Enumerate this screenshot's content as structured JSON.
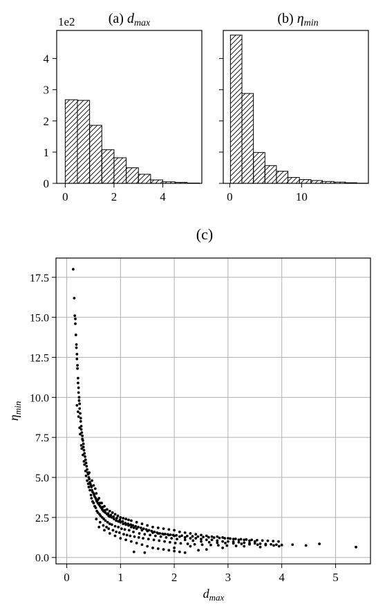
{
  "chart_data": [
    {
      "id": "a",
      "type": "bar",
      "title_prefix": "(a) ",
      "title_var": "d",
      "title_sub": "max",
      "offset_text": "1e2",
      "bin_width": 0.5,
      "bin_lefts": [
        0.0,
        0.5,
        1.0,
        1.5,
        2.0,
        2.5,
        3.0,
        3.5,
        4.0,
        4.5,
        5.0
      ],
      "values": [
        2.68,
        2.66,
        1.86,
        1.08,
        0.82,
        0.5,
        0.29,
        0.11,
        0.05,
        0.03,
        0.01
      ],
      "xlim": [
        -0.35,
        5.6
      ],
      "ylim": [
        0,
        4.9
      ],
      "xticks": [
        0,
        2,
        4
      ],
      "xtick_labels": [
        "0",
        "2",
        "4"
      ],
      "yticks": [
        0,
        1,
        2,
        3,
        4
      ],
      "ytick_labels": [
        "0",
        "1",
        "2",
        "3",
        "4"
      ],
      "hatch": "diagonal"
    },
    {
      "id": "b",
      "type": "bar",
      "title_prefix": "(b) ",
      "title_var": "η",
      "title_sub": "min",
      "bin_width": 1.6,
      "bin_lefts": [
        0.1,
        1.7,
        3.3,
        4.9,
        6.5,
        8.1,
        9.7,
        11.3,
        12.9,
        14.5,
        16.1,
        17.7
      ],
      "values": [
        4.75,
        2.88,
        0.99,
        0.57,
        0.39,
        0.19,
        0.12,
        0.09,
        0.06,
        0.04,
        0.02,
        0.005
      ],
      "xlim": [
        -0.9,
        19.3
      ],
      "ylim": [
        0,
        4.9
      ],
      "xticks": [
        0,
        10
      ],
      "xtick_labels": [
        "0",
        "10"
      ],
      "yticks": [
        0,
        1,
        2,
        3,
        4
      ],
      "hatch": "diagonal"
    },
    {
      "id": "c",
      "type": "scatter",
      "title": "(c)",
      "xlabel_var": "d",
      "xlabel_sub": "max",
      "ylabel_var": "η",
      "ylabel_sub": "min",
      "xlim": [
        -0.2,
        5.65
      ],
      "ylim": [
        -0.4,
        18.7
      ],
      "xticks": [
        0,
        1,
        2,
        3,
        4,
        5
      ],
      "xtick_labels": [
        "0",
        "1",
        "2",
        "3",
        "4",
        "5"
      ],
      "yticks": [
        0,
        2.5,
        5,
        7.5,
        10,
        12.5,
        15,
        17.5
      ],
      "ytick_labels": [
        "0.0",
        "2.5",
        "5.0",
        "7.5",
        "10.0",
        "12.5",
        "15.0",
        "17.5"
      ],
      "grid": true,
      "points": [
        [
          0.12,
          18.0
        ],
        [
          0.14,
          16.2
        ],
        [
          0.15,
          15.1
        ],
        [
          0.16,
          14.9
        ],
        [
          0.16,
          14.6
        ],
        [
          0.17,
          13.9
        ],
        [
          0.18,
          13.3
        ],
        [
          0.18,
          13.1
        ],
        [
          0.19,
          12.7
        ],
        [
          0.19,
          12.4
        ],
        [
          0.2,
          12.0
        ],
        [
          0.2,
          11.8
        ],
        [
          0.21,
          11.2
        ],
        [
          0.21,
          10.9
        ],
        [
          0.22,
          10.6
        ],
        [
          0.22,
          10.3
        ],
        [
          0.23,
          10.0
        ],
        [
          0.23,
          9.8
        ],
        [
          0.24,
          9.6
        ],
        [
          0.24,
          9.3
        ],
        [
          0.25,
          9.0
        ],
        [
          0.26,
          8.7
        ],
        [
          0.26,
          8.5
        ],
        [
          0.27,
          8.2
        ],
        [
          0.27,
          8.0
        ],
        [
          0.28,
          7.8
        ],
        [
          0.29,
          7.6
        ],
        [
          0.29,
          7.4
        ],
        [
          0.3,
          7.3
        ],
        [
          0.31,
          7.1
        ],
        [
          0.31,
          6.9
        ],
        [
          0.32,
          6.7
        ],
        [
          0.33,
          6.5
        ],
        [
          0.34,
          6.3
        ],
        [
          0.35,
          6.1
        ],
        [
          0.36,
          5.9
        ],
        [
          0.37,
          5.7
        ],
        [
          0.38,
          5.5
        ],
        [
          0.39,
          5.3
        ],
        [
          0.4,
          5.2
        ],
        [
          0.41,
          5.0
        ],
        [
          0.42,
          4.9
        ],
        [
          0.43,
          4.7
        ],
        [
          0.44,
          4.6
        ],
        [
          0.45,
          4.5
        ],
        [
          0.46,
          4.4
        ],
        [
          0.47,
          4.2
        ],
        [
          0.48,
          4.1
        ],
        [
          0.5,
          4.0
        ],
        [
          0.51,
          3.9
        ],
        [
          0.52,
          3.8
        ],
        [
          0.54,
          3.7
        ],
        [
          0.55,
          3.6
        ],
        [
          0.56,
          3.5
        ],
        [
          0.58,
          3.4
        ],
        [
          0.6,
          3.3
        ],
        [
          0.62,
          3.2
        ],
        [
          0.64,
          3.1
        ],
        [
          0.66,
          3.0
        ],
        [
          0.68,
          2.9
        ],
        [
          0.7,
          2.85
        ],
        [
          0.72,
          2.8
        ],
        [
          0.75,
          2.7
        ],
        [
          0.78,
          2.6
        ],
        [
          0.8,
          2.55
        ],
        [
          0.84,
          2.5
        ],
        [
          0.88,
          2.4
        ],
        [
          0.92,
          2.3
        ],
        [
          0.96,
          2.25
        ],
        [
          1.0,
          2.2
        ],
        [
          1.05,
          2.1
        ],
        [
          1.1,
          2.05
        ],
        [
          1.15,
          2.0
        ],
        [
          1.2,
          1.9
        ],
        [
          1.25,
          1.85
        ],
        [
          1.3,
          1.8
        ],
        [
          1.4,
          1.7
        ],
        [
          1.5,
          1.65
        ],
        [
          1.6,
          1.55
        ],
        [
          1.7,
          1.5
        ],
        [
          1.8,
          1.45
        ],
        [
          1.9,
          1.4
        ],
        [
          2.0,
          1.35
        ],
        [
          2.1,
          1.3
        ],
        [
          2.2,
          1.25
        ],
        [
          2.3,
          1.2
        ],
        [
          2.4,
          1.2
        ],
        [
          2.5,
          1.15
        ],
        [
          2.6,
          1.1
        ],
        [
          2.7,
          1.1
        ],
        [
          2.8,
          1.05
        ],
        [
          2.9,
          1.0
        ],
        [
          3.0,
          1.0
        ],
        [
          3.1,
          0.98
        ],
        [
          3.2,
          0.95
        ],
        [
          3.3,
          0.92
        ],
        [
          3.4,
          0.9
        ],
        [
          3.5,
          0.88
        ],
        [
          3.6,
          0.86
        ],
        [
          3.7,
          0.84
        ],
        [
          3.8,
          0.82
        ],
        [
          3.9,
          0.8
        ],
        [
          4.0,
          0.78
        ],
        [
          4.2,
          0.8
        ],
        [
          4.45,
          0.75
        ],
        [
          4.7,
          0.85
        ],
        [
          5.38,
          0.65
        ],
        [
          0.19,
          9.5
        ],
        [
          0.21,
          9.1
        ],
        [
          0.22,
          8.8
        ],
        [
          0.24,
          8.1
        ],
        [
          0.25,
          7.7
        ],
        [
          0.27,
          7.0
        ],
        [
          0.28,
          6.8
        ],
        [
          0.3,
          6.4
        ],
        [
          0.32,
          6.0
        ],
        [
          0.33,
          5.8
        ],
        [
          0.35,
          5.4
        ],
        [
          0.36,
          5.1
        ],
        [
          0.38,
          4.8
        ],
        [
          0.4,
          4.6
        ],
        [
          0.41,
          4.4
        ],
        [
          0.43,
          4.2
        ],
        [
          0.45,
          3.9
        ],
        [
          0.46,
          3.7
        ],
        [
          0.48,
          3.5
        ],
        [
          0.5,
          3.4
        ],
        [
          0.52,
          3.2
        ],
        [
          0.54,
          3.1
        ],
        [
          0.56,
          2.9
        ],
        [
          0.58,
          2.8
        ],
        [
          0.61,
          2.7
        ],
        [
          0.63,
          2.6
        ],
        [
          0.66,
          2.5
        ],
        [
          0.69,
          2.4
        ],
        [
          0.72,
          2.3
        ],
        [
          0.76,
          2.2
        ],
        [
          0.8,
          2.1
        ],
        [
          0.84,
          2.05
        ],
        [
          0.9,
          1.95
        ],
        [
          0.96,
          1.9
        ],
        [
          1.02,
          1.8
        ],
        [
          1.08,
          1.75
        ],
        [
          1.16,
          1.7
        ],
        [
          1.24,
          1.6
        ],
        [
          1.35,
          1.5
        ],
        [
          1.45,
          1.45
        ],
        [
          1.55,
          1.4
        ],
        [
          1.65,
          1.35
        ],
        [
          1.75,
          1.3
        ],
        [
          1.85,
          1.25
        ],
        [
          1.95,
          1.2
        ],
        [
          2.05,
          1.15
        ],
        [
          2.2,
          1.1
        ],
        [
          2.35,
          1.05
        ],
        [
          2.5,
          1.0
        ],
        [
          2.65,
          0.95
        ],
        [
          2.8,
          0.92
        ],
        [
          2.95,
          0.9
        ],
        [
          3.1,
          0.88
        ],
        [
          3.25,
          0.85
        ],
        [
          3.4,
          0.82
        ],
        [
          3.55,
          0.8
        ],
        [
          3.7,
          0.78
        ],
        [
          3.85,
          0.75
        ],
        [
          0.42,
          5.3
        ],
        [
          0.47,
          4.8
        ],
        [
          0.53,
          4.3
        ],
        [
          0.6,
          3.7
        ],
        [
          0.65,
          3.4
        ],
        [
          0.7,
          3.2
        ],
        [
          0.75,
          3.0
        ],
        [
          0.8,
          2.9
        ],
        [
          0.85,
          2.8
        ],
        [
          0.9,
          2.7
        ],
        [
          0.95,
          2.6
        ],
        [
          1.0,
          2.5
        ],
        [
          1.05,
          2.45
        ],
        [
          1.1,
          2.4
        ],
        [
          1.15,
          2.35
        ],
        [
          1.2,
          2.3
        ],
        [
          1.3,
          2.2
        ],
        [
          1.4,
          2.1
        ],
        [
          1.5,
          2.0
        ],
        [
          1.6,
          1.9
        ],
        [
          1.7,
          1.85
        ],
        [
          1.8,
          1.8
        ],
        [
          1.9,
          1.75
        ],
        [
          2.0,
          1.7
        ],
        [
          2.1,
          1.6
        ],
        [
          2.2,
          1.55
        ],
        [
          2.3,
          1.5
        ],
        [
          2.4,
          1.45
        ],
        [
          2.5,
          1.4
        ],
        [
          2.6,
          1.35
        ],
        [
          2.7,
          1.3
        ],
        [
          2.8,
          1.3
        ],
        [
          2.9,
          1.25
        ],
        [
          3.0,
          1.2
        ],
        [
          3.1,
          1.15
        ],
        [
          3.2,
          1.1
        ],
        [
          3.3,
          1.1
        ],
        [
          3.4,
          1.05
        ],
        [
          3.5,
          1.0
        ],
        [
          0.6,
          1.9
        ],
        [
          0.7,
          1.7
        ],
        [
          0.8,
          1.5
        ],
        [
          0.9,
          1.35
        ],
        [
          1.0,
          1.2
        ],
        [
          1.1,
          1.1
        ],
        [
          1.2,
          1.0
        ],
        [
          1.3,
          0.9
        ],
        [
          1.4,
          0.8
        ],
        [
          1.5,
          0.7
        ],
        [
          1.6,
          0.6
        ],
        [
          1.7,
          0.55
        ],
        [
          1.8,
          0.5
        ],
        [
          1.9,
          0.45
        ],
        [
          2.0,
          0.4
        ],
        [
          2.1,
          0.35
        ],
        [
          2.2,
          0.3
        ],
        [
          1.25,
          0.35
        ],
        [
          1.45,
          0.3
        ],
        [
          2.45,
          0.45
        ],
        [
          2.6,
          0.5
        ],
        [
          0.55,
          2.4
        ],
        [
          0.62,
          2.2
        ],
        [
          0.68,
          2.0
        ],
        [
          0.74,
          1.9
        ],
        [
          0.78,
          1.8
        ],
        [
          0.86,
          1.7
        ],
        [
          0.92,
          1.6
        ],
        [
          0.98,
          1.55
        ],
        [
          1.06,
          1.45
        ],
        [
          1.12,
          1.4
        ],
        [
          1.18,
          1.35
        ],
        [
          1.26,
          1.3
        ],
        [
          1.34,
          1.25
        ],
        [
          1.42,
          1.2
        ],
        [
          1.52,
          1.15
        ],
        [
          1.62,
          1.1
        ],
        [
          1.72,
          1.05
        ],
        [
          1.82,
          1.0
        ],
        [
          1.92,
          0.95
        ],
        [
          2.02,
          0.9
        ],
        [
          2.12,
          0.88
        ],
        [
          2.25,
          0.85
        ],
        [
          2.38,
          0.82
        ],
        [
          2.52,
          0.8
        ],
        [
          2.68,
          0.78
        ],
        [
          2.82,
          0.76
        ],
        [
          2.98,
          0.74
        ],
        [
          3.15,
          0.72
        ],
        [
          3.3,
          0.7
        ],
        [
          0.5,
          4.5
        ],
        [
          0.55,
          4.0
        ],
        [
          0.58,
          3.6
        ],
        [
          0.62,
          3.4
        ],
        [
          0.67,
          3.15
        ],
        [
          0.71,
          2.95
        ],
        [
          0.77,
          2.75
        ],
        [
          0.82,
          2.65
        ],
        [
          0.87,
          2.55
        ],
        [
          0.93,
          2.45
        ],
        [
          0.99,
          2.35
        ],
        [
          1.04,
          2.25
        ],
        [
          1.09,
          2.15
        ],
        [
          1.14,
          2.1
        ],
        [
          1.19,
          2.05
        ],
        [
          1.23,
          2.0
        ],
        [
          1.28,
          1.95
        ],
        [
          1.33,
          1.9
        ],
        [
          1.38,
          1.85
        ],
        [
          1.43,
          1.8
        ],
        [
          1.48,
          1.75
        ],
        [
          1.53,
          1.7
        ],
        [
          1.58,
          1.65
        ],
        [
          1.63,
          1.6
        ],
        [
          1.68,
          1.55
        ],
        [
          1.73,
          1.5
        ],
        [
          1.78,
          1.48
        ],
        [
          1.83,
          1.46
        ],
        [
          1.88,
          1.44
        ],
        [
          1.93,
          1.42
        ],
        [
          1.98,
          1.4
        ],
        [
          2.04,
          1.38
        ],
        [
          2.14,
          1.36
        ],
        [
          2.24,
          1.34
        ],
        [
          2.34,
          1.32
        ],
        [
          2.44,
          1.3
        ],
        [
          2.54,
          1.28
        ],
        [
          2.64,
          1.26
        ],
        [
          2.74,
          1.24
        ],
        [
          2.84,
          1.22
        ],
        [
          2.94,
          1.2
        ],
        [
          3.04,
          1.18
        ],
        [
          3.14,
          1.16
        ],
        [
          3.24,
          1.14
        ],
        [
          3.34,
          1.12
        ],
        [
          3.44,
          1.1
        ],
        [
          3.54,
          1.08
        ],
        [
          3.64,
          1.06
        ],
        [
          3.74,
          1.04
        ],
        [
          3.84,
          1.02
        ],
        [
          3.94,
          1.0
        ],
        [
          2.0,
          0.6
        ],
        [
          2.3,
          0.7
        ],
        [
          2.9,
          0.6
        ],
        [
          3.6,
          0.65
        ],
        [
          3.95,
          0.7
        ]
      ]
    }
  ]
}
